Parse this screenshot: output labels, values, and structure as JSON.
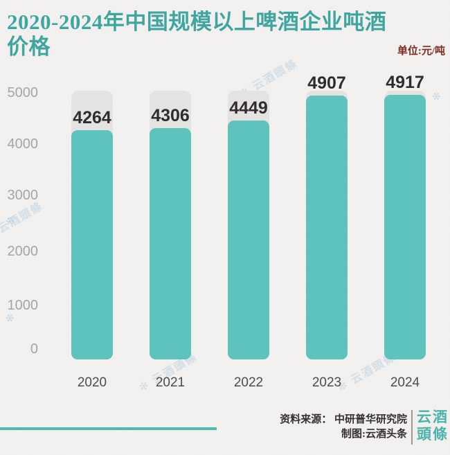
{
  "title": "2020-2024年中国规模以上啤酒企业吨酒价格",
  "unit_label": "单位:元/吨",
  "chart_data": {
    "type": "bar",
    "title": "2020-2024年中国规模以上啤酒企业吨酒价格",
    "categories": [
      "2020",
      "2021",
      "2022",
      "2023",
      "2024"
    ],
    "values": [
      4264,
      4306,
      4449,
      4907,
      4917
    ],
    "unit": "元/吨",
    "xlabel": "",
    "ylabel": "元/吨",
    "ylim": [
      0,
      5000
    ],
    "yticks": [
      0,
      1000,
      2000,
      3000,
      4000,
      5000
    ],
    "grid": false,
    "legend": false,
    "bar_color": "#5ec2bd",
    "track_color": "#e5e3e1",
    "value_label_color": "#2f2d2b",
    "tick_color": "#a5a5a3",
    "category_color": "#4e4c4a"
  },
  "watermark": {
    "text": "云酒頭條",
    "mark": "✻"
  },
  "footer": {
    "source_label": "资料来源： 中研普华研究院",
    "credit_label": "制图:云酒头条",
    "logo_line1": "云酒",
    "logo_line2": "頭條"
  },
  "colors": {
    "background": "#f1f0ee",
    "title": "#3ea59f",
    "unit": "#7c2b21",
    "accent_line": "#4fb9b1",
    "logo": "#4cb2ab",
    "watermark": "#a9c5dd"
  }
}
